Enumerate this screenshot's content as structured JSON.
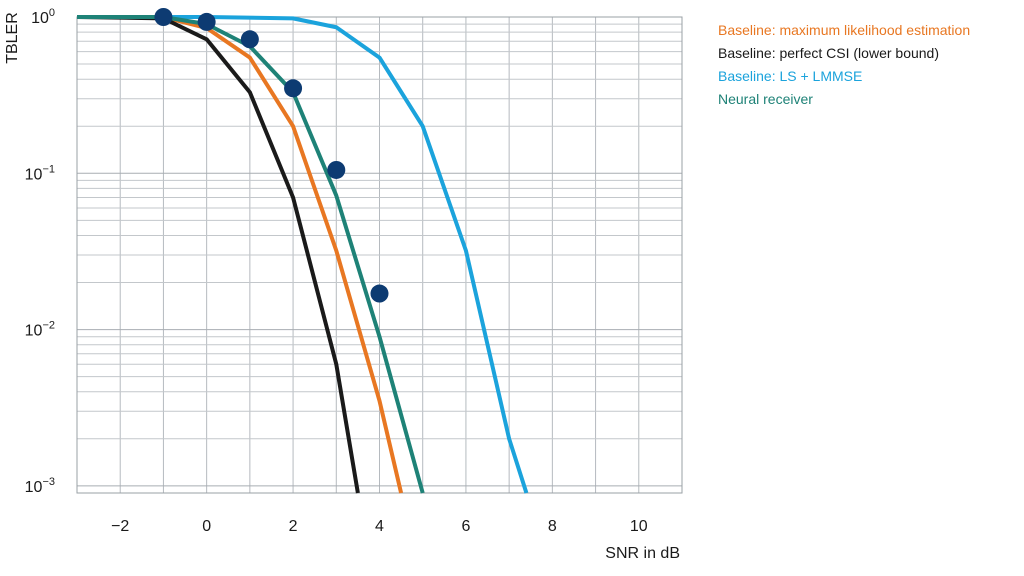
{
  "chart_data": {
    "type": "line",
    "xlabel": "SNR in dB",
    "ylabel": "TBLER",
    "xlim": [
      -3,
      11
    ],
    "ylim": [
      0.0009,
      1
    ],
    "yscale": "log",
    "grid": true,
    "legend_position": "top-right outside plot",
    "x_ticks": [
      -2,
      0,
      2,
      4,
      6,
      8,
      10
    ],
    "x_tick_labels": [
      "−2",
      "0",
      "2",
      "4",
      "6",
      "8",
      "10"
    ],
    "y_ticks": [
      1,
      0.1,
      0.01,
      0.001
    ],
    "y_tick_labels": [
      {
        "base": "10",
        "exp": "0"
      },
      {
        "base": "10",
        "exp": "−1"
      },
      {
        "base": "10",
        "exp": "−2"
      },
      {
        "base": "10",
        "exp": "−3"
      }
    ],
    "series": [
      {
        "name": "Baseline: maximum likelihood estimation",
        "color": "#e87722",
        "style": "line",
        "x": [
          -3,
          -1,
          0,
          1,
          2,
          3,
          4,
          4.5
        ],
        "y": [
          1,
          1,
          0.85,
          0.55,
          0.2,
          0.032,
          0.0035,
          0.0009
        ]
      },
      {
        "name": "Baseline: perfect CSI (lower bound)",
        "color": "#1a1a1a",
        "style": "line",
        "x": [
          -3,
          -1,
          0,
          1,
          2,
          3,
          3.5
        ],
        "y": [
          1,
          0.98,
          0.72,
          0.33,
          0.07,
          0.006,
          0.0009
        ]
      },
      {
        "name": "Baseline: LS + LMMSE",
        "color": "#1ba3dc",
        "style": "line",
        "x": [
          -3,
          0,
          2,
          3,
          4,
          5,
          6,
          7,
          7.4
        ],
        "y": [
          1,
          1,
          0.98,
          0.86,
          0.55,
          0.2,
          0.032,
          0.002,
          0.0009
        ]
      },
      {
        "name": "Neural receiver",
        "color": "#1e8277",
        "style": "line",
        "x": [
          -3,
          -1,
          0,
          1,
          2,
          3,
          4,
          5
        ],
        "y": [
          1,
          1,
          0.9,
          0.65,
          0.33,
          0.072,
          0.009,
          0.0009
        ]
      },
      {
        "name": "",
        "color": "#0d3b72",
        "style": "markers",
        "x": [
          -1,
          0,
          1,
          2,
          3,
          4
        ],
        "y": [
          1,
          0.93,
          0.72,
          0.35,
          0.105,
          0.017
        ]
      }
    ]
  }
}
